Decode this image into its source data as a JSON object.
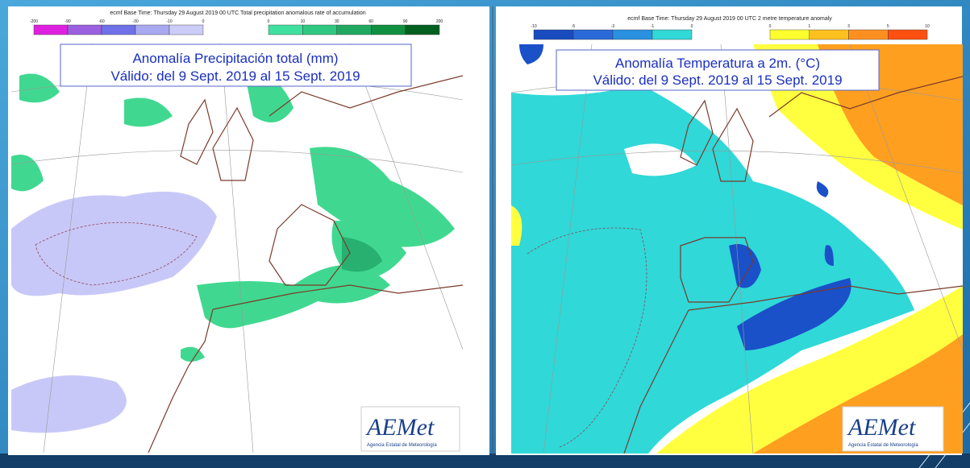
{
  "panels": [
    {
      "header": "ecmf  Base Time: Thursday 29 August 2019 00 UTC Total precipitation anomalous rate of accumulation",
      "legend_negative": [
        -200,
        -90,
        -60,
        -30,
        -10,
        0
      ],
      "legend_positive": [
        0,
        10,
        30,
        60,
        90,
        200
      ],
      "title_lines": [
        "Anomalía Precipitación total (mm)",
        "Válido: del 9 Sept. 2019 al 15 Sept. 2019"
      ],
      "logo": {
        "name": "AEMet",
        "subtitle": "Agencia Estatal de Meteorología"
      }
    },
    {
      "header": "ecmf  Base Time: Thursday 29 August 2019 00 UTC 2 metre temperature anomaly",
      "legend_negative": [
        -10,
        -5,
        -3,
        -1,
        0
      ],
      "legend_positive": [
        0,
        1,
        3,
        5,
        10
      ],
      "title_lines": [
        "Anomalía Temperatura a 2m. (°C)",
        "Válido: del 9 Sept. 2019 al 15 Sept. 2019"
      ],
      "logo": {
        "name": "AEMet",
        "subtitle": "Agencia Estatal de Meteorología"
      }
    }
  ]
}
